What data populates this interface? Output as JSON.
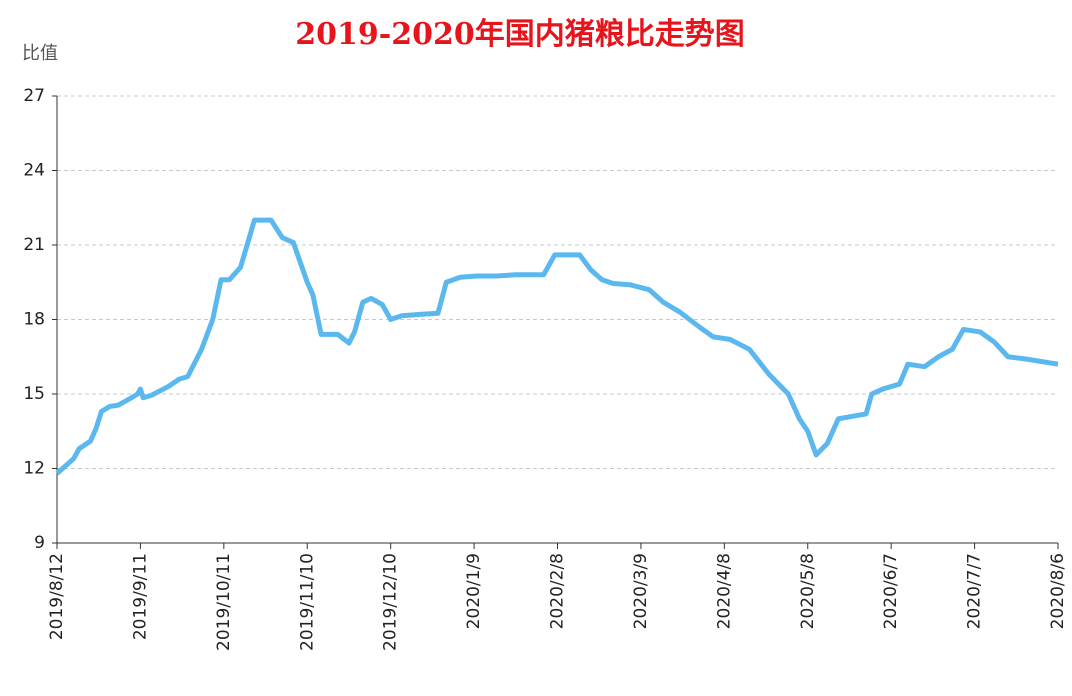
{
  "chart_data": {
    "type": "line",
    "title": "2019-2020年国内猪粮比走势图",
    "y_label": "比值",
    "x": [
      "2019/8/12",
      "2019/8/18",
      "2019/8/20",
      "2019/8/24",
      "2019/8/26",
      "2019/8/28",
      "2019/8/31",
      "2019/9/3",
      "2019/9/7",
      "2019/9/10",
      "2019/9/11",
      "2019/9/12",
      "2019/9/15",
      "2019/9/21",
      "2019/9/25",
      "2019/9/28",
      "2019/10/3",
      "2019/10/7",
      "2019/10/10",
      "2019/10/13",
      "2019/10/17",
      "2019/10/22",
      "2019/10/24",
      "2019/10/28",
      "2019/11/1",
      "2019/11/5",
      "2019/11/10",
      "2019/11/12",
      "2019/11/15",
      "2019/11/21",
      "2019/11/25",
      "2019/11/27",
      "2019/11/30",
      "2019/12/3",
      "2019/12/7",
      "2019/12/10",
      "2019/12/14",
      "2019/12/20",
      "2019/12/27",
      "2019/12/30",
      "2020/1/4",
      "2020/1/10",
      "2020/1/17",
      "2020/1/24",
      "2020/2/3",
      "2020/2/7",
      "2020/2/16",
      "2020/2/20",
      "2020/2/24",
      "2020/2/28",
      "2020/3/5",
      "2020/3/12",
      "2020/3/17",
      "2020/3/23",
      "2020/3/30",
      "2020/4/4",
      "2020/4/10",
      "2020/4/17",
      "2020/4/24",
      "2020/5/1",
      "2020/5/5",
      "2020/5/8",
      "2020/5/11",
      "2020/5/15",
      "2020/5/19",
      "2020/5/24",
      "2020/5/29",
      "2020/5/31",
      "2020/6/4",
      "2020/6/10",
      "2020/6/13",
      "2020/6/19",
      "2020/6/24",
      "2020/6/29",
      "2020/7/3",
      "2020/7/9",
      "2020/7/14",
      "2020/7/19",
      "2020/7/26",
      "2020/8/6"
    ],
    "series": [
      {
        "name": "猪粮比",
        "color": "#5bb8ef",
        "values": [
          11.8,
          12.4,
          12.8,
          13.1,
          13.6,
          14.3,
          14.5,
          14.55,
          14.8,
          15.0,
          15.2,
          14.85,
          14.95,
          15.3,
          15.6,
          15.7,
          16.8,
          18.0,
          19.6,
          19.6,
          20.1,
          22.0,
          22.0,
          22.0,
          21.3,
          21.1,
          19.5,
          19.0,
          17.4,
          17.4,
          17.05,
          17.5,
          18.7,
          18.85,
          18.6,
          18.0,
          18.15,
          18.2,
          18.25,
          19.5,
          19.7,
          19.75,
          19.75,
          19.8,
          19.8,
          20.6,
          20.6,
          20.0,
          19.6,
          19.45,
          19.4,
          19.2,
          18.7,
          18.3,
          17.7,
          17.3,
          17.2,
          16.8,
          15.8,
          15.0,
          14.0,
          13.5,
          12.55,
          13.0,
          14.0,
          14.1,
          14.2,
          15.0,
          15.2,
          15.4,
          16.2,
          16.1,
          16.5,
          16.8,
          17.6,
          17.5,
          17.1,
          16.5,
          16.4,
          16.2
        ]
      }
    ],
    "xlim": [
      "2019/8/12",
      "2020/8/6"
    ],
    "xticks": [
      "2019/8/12",
      "2019/9/11",
      "2019/10/11",
      "2019/11/10",
      "2019/12/10",
      "2020/1/9",
      "2020/2/8",
      "2020/3/9",
      "2020/4/8",
      "2020/5/8",
      "2020/6/7",
      "2020/7/7",
      "2020/8/6"
    ],
    "ylim": [
      9,
      27
    ],
    "yticks": [
      9,
      12,
      15,
      18,
      21,
      24,
      27
    ],
    "grid": true
  }
}
